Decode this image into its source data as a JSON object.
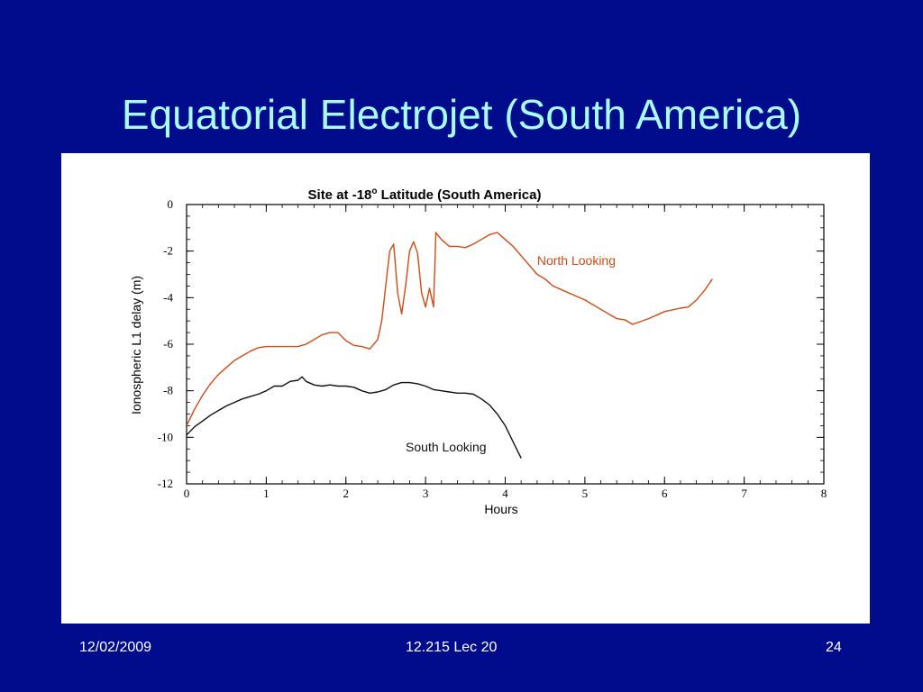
{
  "slide": {
    "title": "Equatorial Electrojet (South America)",
    "footer_date": "12/02/2009",
    "footer_course": "12.215 Lec 20",
    "footer_page": "24"
  },
  "chart_data": {
    "type": "line",
    "title_pre": "Site at -18",
    "title_sup": "o",
    "title_post": " Latitude (South America)",
    "xlabel": "Hours",
    "ylabel": "Ionospheric L1 delay (m)",
    "xlim": [
      0,
      8
    ],
    "ylim": [
      -12,
      0
    ],
    "xticks": [
      0,
      1,
      2,
      3,
      4,
      5,
      6,
      7,
      8
    ],
    "yticks": [
      0,
      -2,
      -4,
      -6,
      -8,
      -10,
      -12
    ],
    "grid": false,
    "series": [
      {
        "name": "North Looking",
        "color": "#d04a12",
        "x": [
          0.0,
          0.1,
          0.2,
          0.3,
          0.4,
          0.5,
          0.6,
          0.7,
          0.8,
          0.9,
          1.0,
          1.2,
          1.4,
          1.5,
          1.6,
          1.7,
          1.8,
          1.9,
          2.0,
          2.1,
          2.2,
          2.3,
          2.4,
          2.45,
          2.5,
          2.55,
          2.6,
          2.65,
          2.7,
          2.75,
          2.8,
          2.85,
          2.9,
          2.95,
          3.0,
          3.05,
          3.1,
          3.13,
          3.15,
          3.2,
          3.3,
          3.4,
          3.5,
          3.6,
          3.7,
          3.8,
          3.9,
          4.0,
          4.1,
          4.2,
          4.3,
          4.4,
          4.5,
          4.6,
          4.8,
          5.0,
          5.2,
          5.4,
          5.5,
          5.6,
          5.8,
          6.0,
          6.2,
          6.3,
          6.4,
          6.5,
          6.6
        ],
        "y": [
          -9.5,
          -8.8,
          -8.2,
          -7.7,
          -7.3,
          -7.0,
          -6.7,
          -6.5,
          -6.3,
          -6.15,
          -6.1,
          -6.1,
          -6.1,
          -6.0,
          -5.8,
          -5.6,
          -5.5,
          -5.5,
          -5.85,
          -6.05,
          -6.1,
          -6.2,
          -5.8,
          -5.0,
          -3.5,
          -2.0,
          -1.7,
          -3.8,
          -4.7,
          -3.5,
          -2.0,
          -1.6,
          -2.1,
          -3.8,
          -4.4,
          -3.6,
          -4.4,
          -1.2,
          -1.3,
          -1.5,
          -1.8,
          -1.8,
          -1.85,
          -1.7,
          -1.5,
          -1.3,
          -1.2,
          -1.5,
          -1.8,
          -2.2,
          -2.6,
          -3.0,
          -3.2,
          -3.5,
          -3.8,
          -4.1,
          -4.5,
          -4.9,
          -4.95,
          -5.15,
          -4.9,
          -4.6,
          -4.45,
          -4.4,
          -4.1,
          -3.7,
          -3.2
        ]
      },
      {
        "name": "South Looking",
        "color": "#111111",
        "x": [
          0.0,
          0.1,
          0.2,
          0.3,
          0.4,
          0.5,
          0.6,
          0.7,
          0.8,
          0.9,
          1.0,
          1.1,
          1.2,
          1.3,
          1.4,
          1.45,
          1.5,
          1.6,
          1.7,
          1.8,
          1.9,
          2.0,
          2.1,
          2.2,
          2.3,
          2.4,
          2.5,
          2.6,
          2.7,
          2.8,
          2.9,
          3.0,
          3.1,
          3.2,
          3.3,
          3.4,
          3.5,
          3.6,
          3.7,
          3.8,
          3.9,
          4.0,
          4.1,
          4.2
        ],
        "y": [
          -9.9,
          -9.55,
          -9.3,
          -9.05,
          -8.85,
          -8.65,
          -8.5,
          -8.35,
          -8.25,
          -8.15,
          -8.0,
          -7.8,
          -7.8,
          -7.6,
          -7.55,
          -7.4,
          -7.6,
          -7.75,
          -7.8,
          -7.75,
          -7.8,
          -7.8,
          -7.85,
          -8.0,
          -8.1,
          -8.05,
          -7.95,
          -7.75,
          -7.65,
          -7.65,
          -7.7,
          -7.8,
          -7.95,
          -8.0,
          -8.05,
          -8.1,
          -8.1,
          -8.15,
          -8.35,
          -8.6,
          -9.0,
          -9.5,
          -10.2,
          -10.9
        ]
      }
    ],
    "annotations": [
      {
        "text": "North Looking",
        "x": 4.4,
        "y": -2.6,
        "color": "#d04a12"
      },
      {
        "text": "South Looking",
        "x": 2.75,
        "y": -10.6,
        "color": "#111111"
      }
    ]
  }
}
